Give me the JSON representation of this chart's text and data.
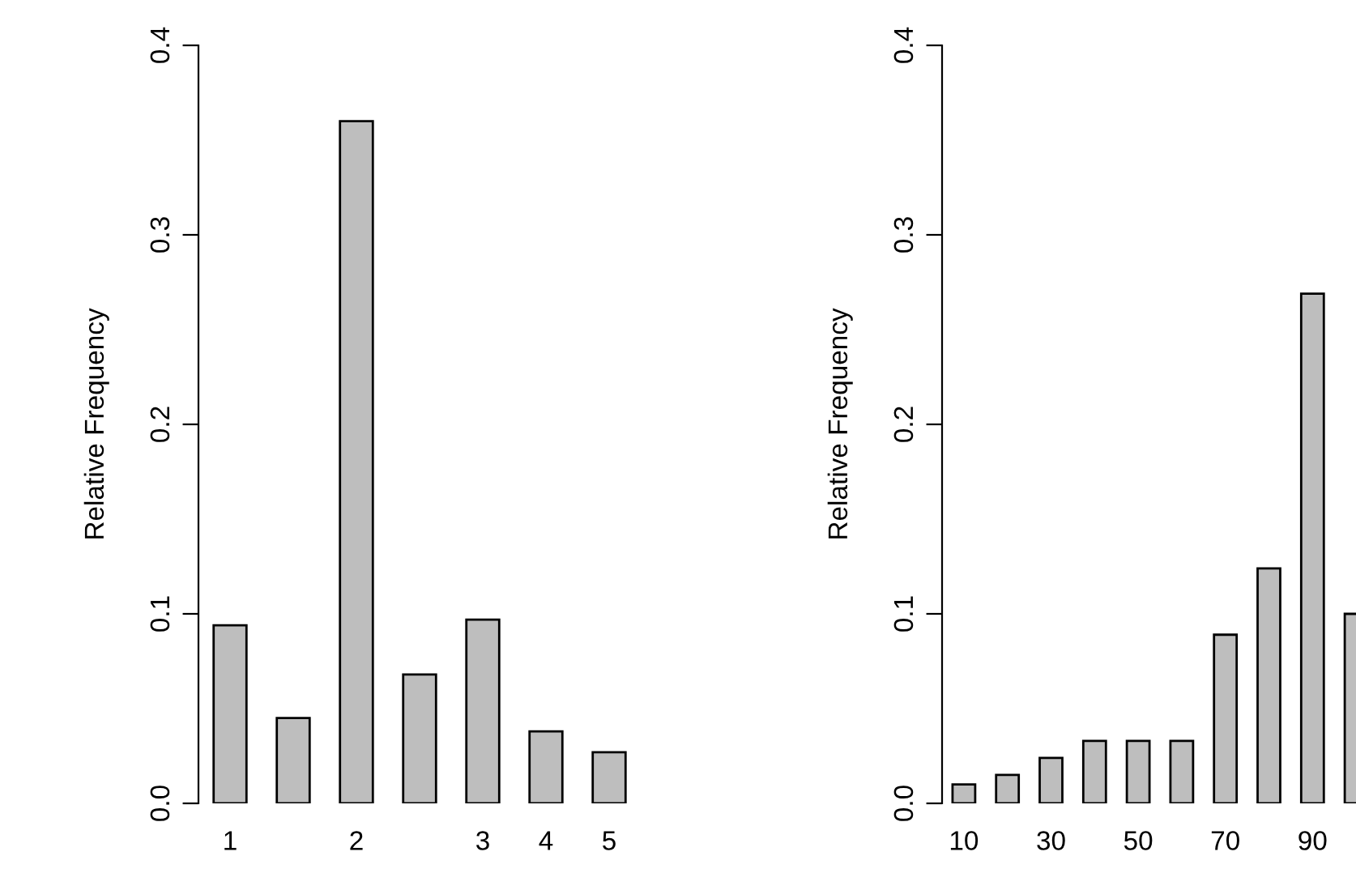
{
  "chart_data": [
    {
      "type": "bar",
      "categories": [
        "1",
        null,
        "2",
        null,
        "3",
        "4",
        "5"
      ],
      "values": [
        0.094,
        0.045,
        0.36,
        0.068,
        0.097,
        0.038,
        0.027
      ],
      "color": "#bebebe",
      "ylabel": "Relative Frequency",
      "ylim": [
        0,
        0.4
      ],
      "yticks": [
        {
          "value": 0,
          "label": "0.0"
        },
        0.1,
        0.2,
        0.3,
        0.4
      ]
    },
    {
      "type": "bar",
      "categories": [
        "10",
        null,
        "30",
        null,
        "50",
        null,
        "70",
        null,
        "90",
        null
      ],
      "values": [
        0.01,
        0.015,
        0.024,
        0.033,
        0.033,
        0.033,
        0.089,
        0.124,
        0.269,
        0.1
      ],
      "color": "#bebebe",
      "ylabel": "Relative Frequency",
      "ylim": [
        0,
        0.4
      ],
      "yticks": [
        {
          "value": 0,
          "label": "0.0"
        },
        0.1,
        0.2,
        0.3,
        0.4
      ]
    }
  ]
}
